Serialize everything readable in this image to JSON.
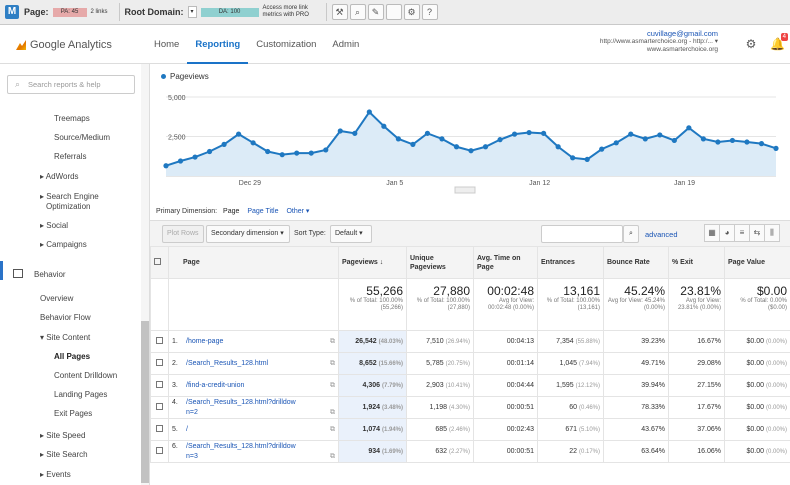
{
  "mozbar": {
    "logo": "M",
    "page_label": "Page:",
    "pa": "PA: 45",
    "links": "2 links",
    "root_label": "Root Domain:",
    "da": "DA: 100",
    "pro_text": "Access more link metrics with PRO"
  },
  "header": {
    "product": "Google Analytics",
    "nav": [
      "Home",
      "Reporting",
      "Customization",
      "Admin"
    ],
    "active_nav": "Reporting",
    "email": "cuvillage@gmail.com",
    "site1": "http://www.asmarterchoice.org - http:/...",
    "site2": "www.asmarterchoice.org",
    "badge": "4"
  },
  "sidebar": {
    "search_placeholder": "Search reports & help",
    "items": [
      "Treemaps",
      "Source/Medium",
      "Referrals",
      "AdWords",
      "Search Engine",
      "Optimization",
      "Social",
      "Campaigns",
      "Behavior",
      "Overview",
      "Behavior Flow",
      "Site Content",
      "All Pages",
      "Content Drilldown",
      "Landing Pages",
      "Exit Pages",
      "Site Speed",
      "Site Search",
      "Events"
    ]
  },
  "chart_data": {
    "type": "line",
    "series": [
      {
        "name": "Pageviews",
        "values": [
          650,
          950,
          1200,
          1550,
          2000,
          2650,
          2100,
          1550,
          1350,
          1450,
          1450,
          1650,
          2850,
          2700,
          4050,
          3150,
          2350,
          2000,
          2700,
          2350,
          1850,
          1600,
          1850,
          2300,
          2650,
          2750,
          2700,
          1850,
          1150,
          1050,
          1700,
          2100,
          2650,
          2350,
          2600,
          2250,
          3050,
          2350,
          2150,
          2250,
          2150,
          2050,
          1750
        ]
      }
    ],
    "ylim": [
      0,
      5000
    ],
    "y_ticks": [
      "5,000",
      "2,500"
    ],
    "x_ticks": [
      "Dec 29",
      "Jan 5",
      "Jan 12",
      "Jan 19"
    ]
  },
  "dimension": {
    "label": "Primary Dimension:",
    "selected": "Page",
    "opts": [
      "Page Title",
      "Other"
    ]
  },
  "controls": {
    "plot_rows": "Plot Rows",
    "secondary": "Secondary dimension",
    "sort_label": "Sort Type:",
    "sort_value": "Default",
    "advanced": "advanced"
  },
  "table": {
    "headers": [
      "Page",
      "Pageviews",
      "Unique Pageviews",
      "Avg. Time on Page",
      "Entrances",
      "Bounce Rate",
      "% Exit",
      "Page Value"
    ],
    "totals": [
      {
        "big": "55,266",
        "sub": "% of Total: 100.00% (55,266)"
      },
      {
        "big": "27,880",
        "sub": "% of Total: 100.00% (27,880)"
      },
      {
        "big": "00:02:48",
        "sub": "Avg for View: 00:02:48 (0.00%)"
      },
      {
        "big": "13,161",
        "sub": "% of Total: 100.00% (13,161)"
      },
      {
        "big": "45.24%",
        "sub": "Avg for View: 45.24% (0.00%)"
      },
      {
        "big": "23.81%",
        "sub": "Avg for View: 23.81% (0.00%)"
      },
      {
        "big": "$0.00",
        "sub": "% of Total: 0.00% ($0.00)"
      }
    ],
    "rows": [
      {
        "n": "1.",
        "page": "/home-page",
        "pv": "26,542",
        "pvp": "(48.03%)",
        "upv": "7,510",
        "upvp": "(26.94%)",
        "t": "00:04:13",
        "ent": "7,354",
        "entp": "(55.88%)",
        "br": "39.23%",
        "ex": "16.67%",
        "val": "$0.00",
        "valp": "(0.00%)"
      },
      {
        "n": "2.",
        "page": "/Search_Results_128.html",
        "pv": "8,652",
        "pvp": "(15.66%)",
        "upv": "5,785",
        "upvp": "(20.75%)",
        "t": "00:01:14",
        "ent": "1,045",
        "entp": "(7.94%)",
        "br": "49.71%",
        "ex": "29.08%",
        "val": "$0.00",
        "valp": "(0.00%)"
      },
      {
        "n": "3.",
        "page": "/find-a-credit-union",
        "pv": "4,306",
        "pvp": "(7.79%)",
        "upv": "2,903",
        "upvp": "(10.41%)",
        "t": "00:04:44",
        "ent": "1,595",
        "entp": "(12.12%)",
        "br": "39.94%",
        "ex": "27.15%",
        "val": "$0.00",
        "valp": "(0.00%)"
      },
      {
        "n": "4.",
        "page": "/Search_Results_128.html?drilldow",
        "page2": "n=2",
        "pv": "1,924",
        "pvp": "(3.48%)",
        "upv": "1,198",
        "upvp": "(4.30%)",
        "t": "00:00:51",
        "ent": "60",
        "entp": "(0.46%)",
        "br": "78.33%",
        "ex": "17.67%",
        "val": "$0.00",
        "valp": "(0.00%)"
      },
      {
        "n": "5.",
        "page": "/",
        "pv": "1,074",
        "pvp": "(1.94%)",
        "upv": "685",
        "upvp": "(2.46%)",
        "t": "00:02:43",
        "ent": "671",
        "entp": "(5.10%)",
        "br": "43.67%",
        "ex": "37.06%",
        "val": "$0.00",
        "valp": "(0.00%)"
      },
      {
        "n": "6.",
        "page": "/Search_Results_128.html?drilldow",
        "page2": "n=3",
        "pv": "934",
        "pvp": "(1.69%)",
        "upv": "632",
        "upvp": "(2.27%)",
        "t": "00:00:51",
        "ent": "22",
        "entp": "(0.17%)",
        "br": "63.64%",
        "ex": "16.06%",
        "val": "$0.00",
        "valp": "(0.00%)"
      }
    ]
  }
}
